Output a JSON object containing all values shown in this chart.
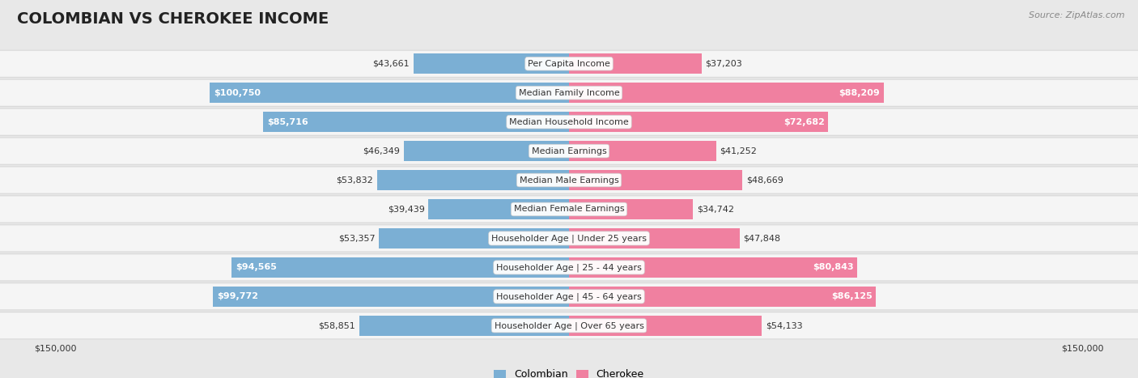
{
  "title": "COLOMBIAN VS CHEROKEE INCOME",
  "source": "Source: ZipAtlas.com",
  "categories": [
    "Per Capita Income",
    "Median Family Income",
    "Median Household Income",
    "Median Earnings",
    "Median Male Earnings",
    "Median Female Earnings",
    "Householder Age | Under 25 years",
    "Householder Age | 25 - 44 years",
    "Householder Age | 45 - 64 years",
    "Householder Age | Over 65 years"
  ],
  "colombian_values": [
    43661,
    100750,
    85716,
    46349,
    53832,
    39439,
    53357,
    94565,
    99772,
    58851
  ],
  "cherokee_values": [
    37203,
    88209,
    72682,
    41252,
    48669,
    34742,
    47848,
    80843,
    86125,
    54133
  ],
  "colombian_color": "#7bafd4",
  "colombian_color_dark": "#4e8abf",
  "cherokee_color": "#f080a0",
  "cherokee_color_dark": "#e0507a",
  "colombian_label": "Colombian",
  "cherokee_label": "Cherokee",
  "max_value": 150000,
  "fig_bg": "#e8e8e8",
  "row_bg": "#f5f5f5",
  "row_border": "#cccccc",
  "title_color": "#222222",
  "source_color": "#888888",
  "value_color_dark": "#333333",
  "value_color_white": "#ffffff",
  "title_fontsize": 14,
  "label_fontsize": 8,
  "value_fontsize": 8,
  "source_fontsize": 8,
  "legend_fontsize": 9,
  "axis_label": "$150,000",
  "white_text_threshold_col": 80000,
  "white_text_threshold_cher": 65000
}
